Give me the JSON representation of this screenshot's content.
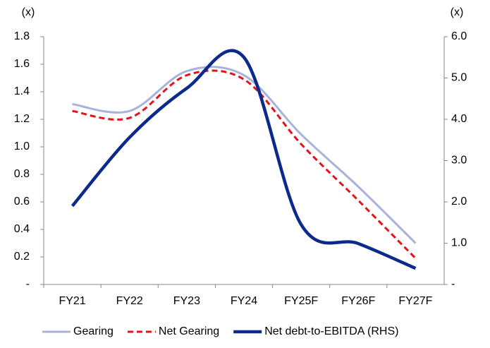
{
  "chart_data": {
    "type": "line",
    "y_label": "(x)",
    "y2_label": "(x)",
    "categories": [
      "FY21",
      "FY22",
      "FY23",
      "FY24",
      "FY25F",
      "FY26F",
      "FY27F"
    ],
    "series": [
      {
        "name": "Gearing",
        "color": "#a9b3d9",
        "style": "solid",
        "width": 3,
        "values": [
          1.31,
          1.26,
          1.55,
          1.52,
          1.09,
          0.71,
          0.3
        ]
      },
      {
        "name": "Net Gearing",
        "color": "#e3121b",
        "style": "dashed",
        "width": 3,
        "values": [
          1.26,
          1.21,
          1.52,
          1.49,
          1.02,
          0.61,
          0.19
        ]
      },
      {
        "name": "Net debt-to-EBITDA (RHS)",
        "color": "#0b2a8c",
        "style": "solid",
        "width": 4.5,
        "axis": "y2",
        "values": [
          1.9,
          3.56,
          4.75,
          5.5,
          1.45,
          0.99,
          0.39
        ]
      }
    ],
    "ylim": [
      0,
      1.8
    ],
    "yticks": [
      {
        "value": 0,
        "label": "-"
      },
      0.2,
      0.4,
      0.6,
      0.8,
      {
        "value": 1,
        "label": "1.0"
      },
      1.2,
      1.4,
      1.6,
      1.8
    ],
    "y2lim": [
      0,
      6
    ],
    "y2ticks": [
      {
        "value": 0,
        "label": "-"
      },
      {
        "value": 1,
        "label": "1.0"
      },
      {
        "value": 2,
        "label": "2.0"
      },
      {
        "value": 3,
        "label": "3.0"
      },
      {
        "value": 4,
        "label": "4.0"
      },
      {
        "value": 5,
        "label": "5.0"
      },
      {
        "value": 6,
        "label": "6.0"
      }
    ],
    "smooth": true,
    "legend": "bottom"
  }
}
